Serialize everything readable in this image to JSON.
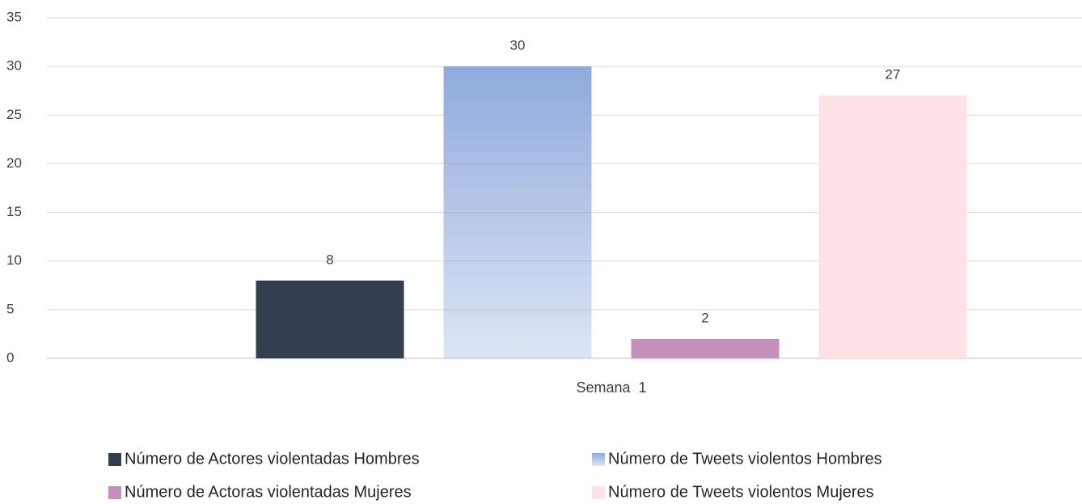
{
  "chart_data": {
    "type": "bar",
    "categories": [
      "Semana  1"
    ],
    "series": [
      {
        "name": "Número de Actores violentadas Hombres",
        "color": "#333f50",
        "values": [
          8
        ]
      },
      {
        "name": "Número de Tweets violentos Hombres",
        "color": "#8faadc",
        "values": [
          30
        ]
      },
      {
        "name": "Número de Actoras violentadas Mujeres",
        "color": "#c490b9",
        "values": [
          2
        ]
      },
      {
        "name": "Número de Tweets violentos Mujeres",
        "color": "#fde2e6",
        "values": [
          27
        ]
      }
    ],
    "ylim": [
      0,
      35
    ],
    "yticks": [
      0,
      5,
      10,
      15,
      20,
      25,
      30,
      35
    ],
    "grid": true,
    "legend": "bottom"
  }
}
